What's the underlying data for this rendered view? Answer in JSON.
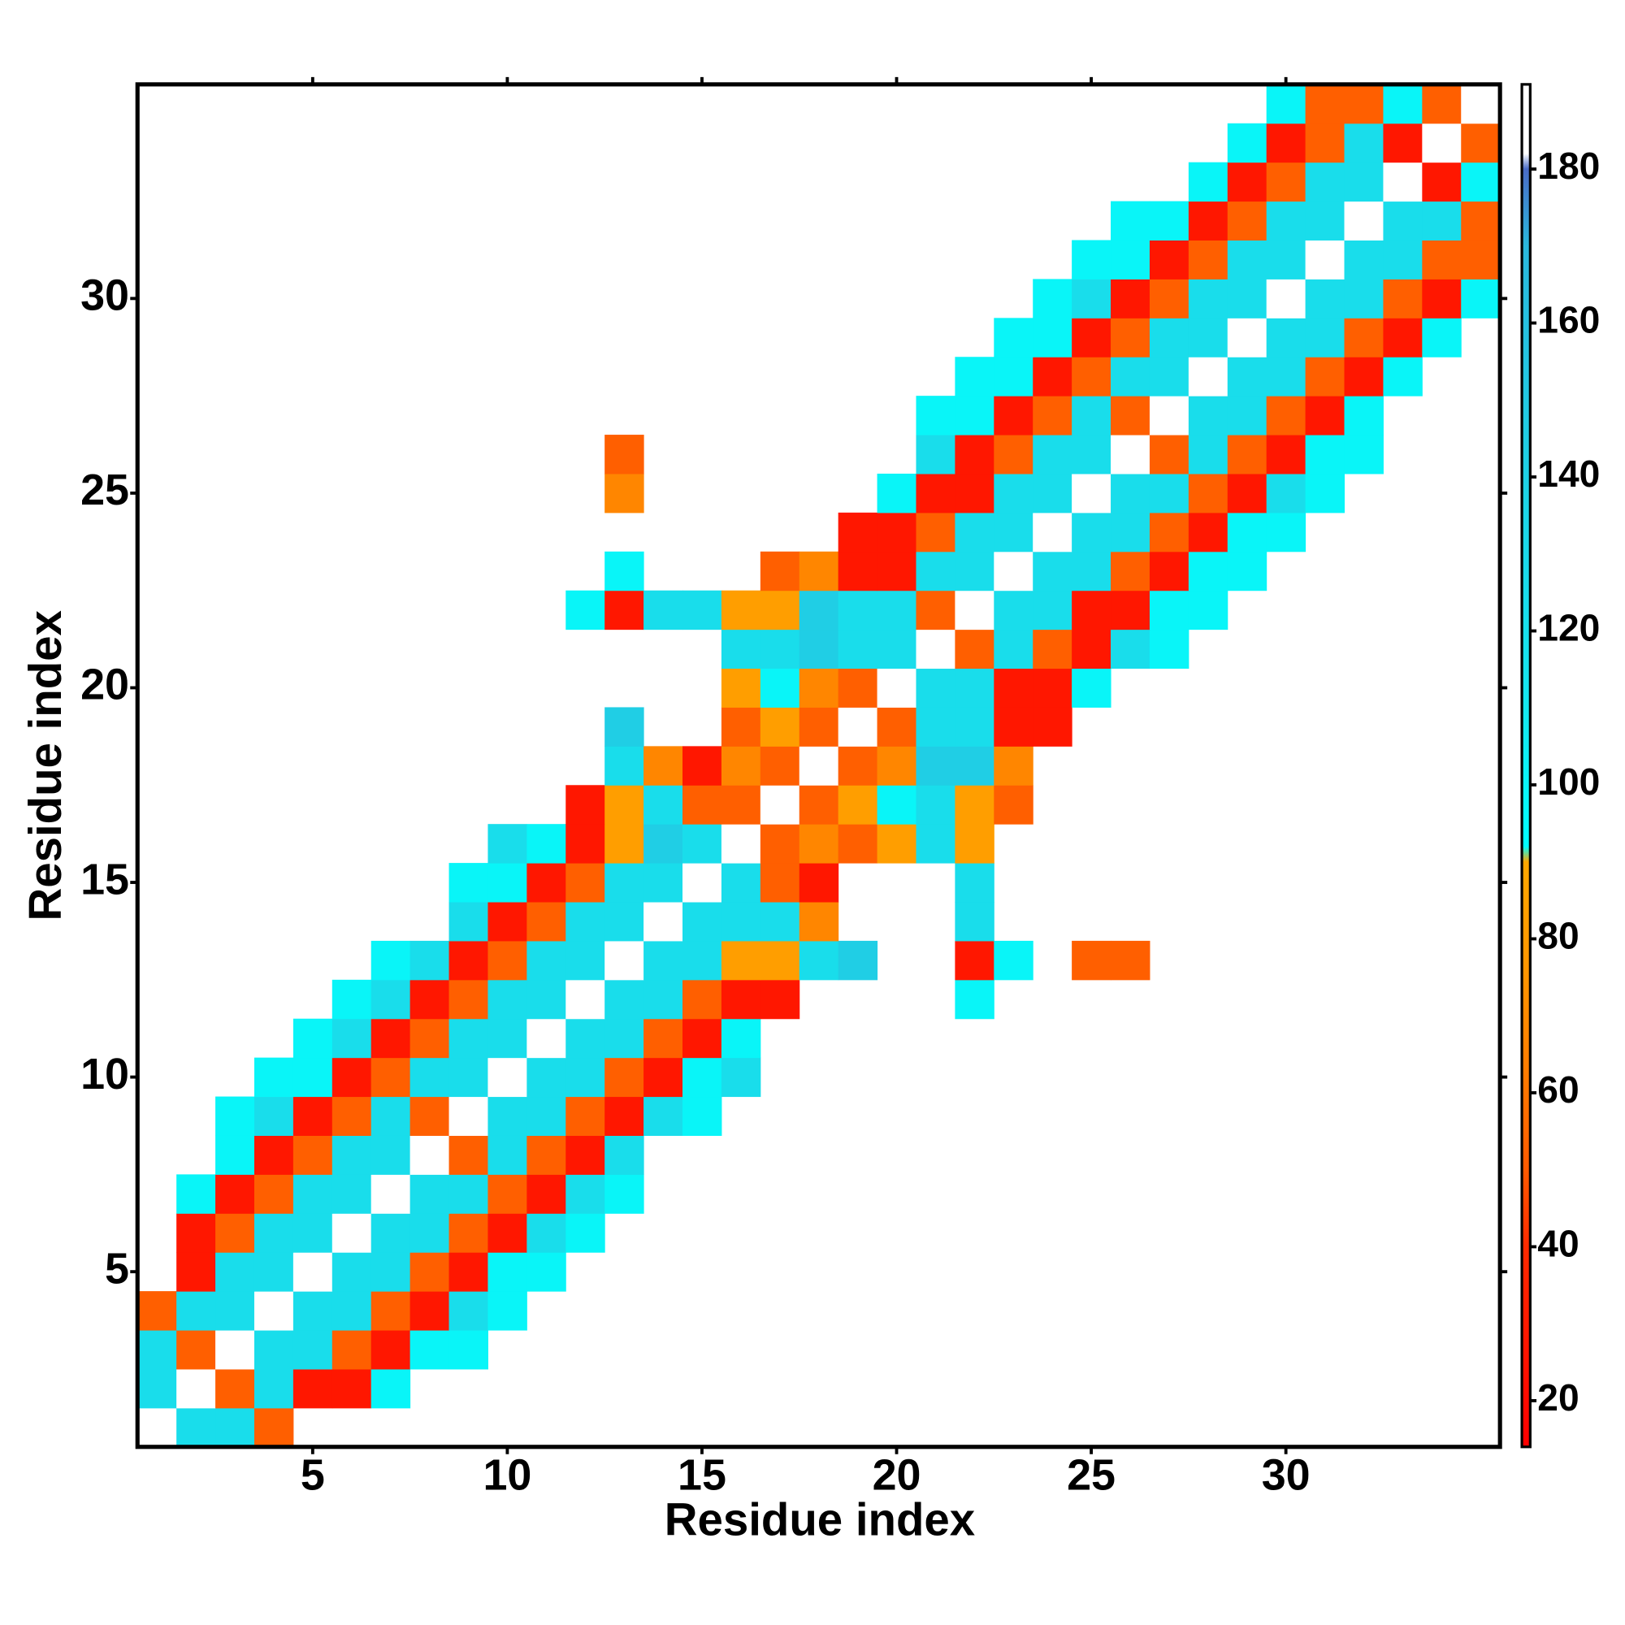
{
  "chart_data": {
    "type": "heatmap",
    "xlabel": "Residue index",
    "ylabel": "Residue index",
    "x": [
      1,
      2,
      3,
      4,
      5,
      6,
      7,
      8,
      9,
      10,
      11,
      12,
      13,
      14,
      15,
      16,
      17,
      18,
      19,
      20,
      21,
      22,
      23,
      24,
      25,
      26,
      27,
      28,
      29,
      30,
      31,
      32,
      33,
      34,
      35
    ],
    "y": [
      1,
      2,
      3,
      4,
      5,
      6,
      7,
      8,
      9,
      10,
      11,
      12,
      13,
      14,
      15,
      16,
      17,
      18,
      19,
      20,
      21,
      22,
      23,
      24,
      25,
      26,
      27,
      28,
      29,
      30,
      31,
      32,
      33,
      34,
      35
    ],
    "xlim": [
      0.5,
      35.5
    ],
    "ylim": [
      0.5,
      35.5
    ],
    "xticks": [
      5,
      10,
      15,
      20,
      25,
      30
    ],
    "yticks": [
      5,
      10,
      15,
      20,
      25,
      30
    ],
    "z": [
      [
        186,
        125,
        125,
        52,
        null,
        null,
        null,
        null,
        null,
        null,
        null,
        null,
        null,
        null,
        null,
        null,
        null,
        null,
        null,
        null,
        null,
        null,
        null,
        null,
        null,
        null,
        null,
        null,
        null,
        null,
        null,
        null,
        null,
        null,
        null
      ],
      [
        125,
        186,
        52,
        125,
        28,
        28,
        100,
        null,
        null,
        null,
        null,
        null,
        null,
        null,
        null,
        null,
        null,
        null,
        null,
        null,
        null,
        null,
        null,
        null,
        null,
        null,
        null,
        null,
        null,
        null,
        null,
        null,
        null,
        null,
        null
      ],
      [
        125,
        52,
        186,
        125,
        125,
        52,
        28,
        100,
        100,
        null,
        null,
        null,
        null,
        null,
        null,
        null,
        null,
        null,
        null,
        null,
        null,
        null,
        null,
        null,
        null,
        null,
        null,
        null,
        null,
        null,
        null,
        null,
        null,
        null,
        null
      ],
      [
        52,
        125,
        125,
        186,
        125,
        125,
        52,
        28,
        125,
        100,
        null,
        null,
        null,
        null,
        null,
        null,
        null,
        null,
        null,
        null,
        null,
        null,
        null,
        null,
        null,
        null,
        null,
        null,
        null,
        null,
        null,
        null,
        null,
        null,
        null
      ],
      [
        null,
        28,
        125,
        125,
        186,
        125,
        125,
        52,
        28,
        100,
        100,
        null,
        null,
        null,
        null,
        null,
        null,
        null,
        null,
        null,
        null,
        null,
        null,
        null,
        null,
        null,
        null,
        null,
        null,
        null,
        null,
        null,
        null,
        null,
        null
      ],
      [
        null,
        28,
        52,
        125,
        125,
        186,
        125,
        125,
        52,
        28,
        125,
        100,
        null,
        null,
        null,
        null,
        null,
        null,
        null,
        null,
        null,
        null,
        null,
        null,
        null,
        null,
        null,
        null,
        null,
        null,
        null,
        null,
        null,
        null,
        null
      ],
      [
        null,
        100,
        28,
        52,
        125,
        125,
        186,
        125,
        125,
        52,
        28,
        125,
        100,
        null,
        null,
        null,
        null,
        null,
        null,
        null,
        null,
        null,
        null,
        null,
        null,
        null,
        null,
        null,
        null,
        null,
        null,
        null,
        null,
        null,
        null
      ],
      [
        null,
        null,
        100,
        28,
        52,
        125,
        125,
        186,
        52,
        125,
        52,
        28,
        125,
        null,
        null,
        null,
        null,
        null,
        null,
        null,
        null,
        null,
        null,
        null,
        null,
        null,
        null,
        null,
        null,
        null,
        null,
        null,
        null,
        null,
        null
      ],
      [
        null,
        null,
        100,
        125,
        28,
        52,
        125,
        52,
        186,
        125,
        125,
        52,
        28,
        125,
        100,
        null,
        null,
        null,
        null,
        null,
        null,
        null,
        null,
        null,
        null,
        null,
        null,
        null,
        null,
        null,
        null,
        null,
        null,
        null,
        null
      ],
      [
        null,
        null,
        null,
        100,
        100,
        28,
        52,
        125,
        125,
        186,
        125,
        125,
        52,
        28,
        100,
        125,
        null,
        null,
        null,
        null,
        null,
        null,
        null,
        null,
        null,
        null,
        null,
        null,
        null,
        null,
        null,
        null,
        null,
        null,
        null
      ],
      [
        null,
        null,
        null,
        null,
        100,
        125,
        28,
        52,
        125,
        125,
        186,
        125,
        125,
        52,
        28,
        100,
        null,
        null,
        null,
        null,
        null,
        null,
        null,
        null,
        null,
        null,
        null,
        null,
        null,
        null,
        null,
        null,
        null,
        null,
        null
      ],
      [
        null,
        null,
        null,
        null,
        null,
        100,
        125,
        28,
        52,
        125,
        125,
        186,
        125,
        125,
        52,
        28,
        28,
        null,
        null,
        null,
        null,
        100,
        null,
        null,
        null,
        null,
        null,
        null,
        null,
        null,
        null,
        null,
        null,
        null,
        null
      ],
      [
        null,
        null,
        null,
        null,
        null,
        null,
        100,
        125,
        28,
        52,
        125,
        125,
        186,
        125,
        125,
        82,
        82,
        125,
        145,
        null,
        null,
        28,
        100,
        null,
        52,
        52,
        null,
        null,
        null,
        null,
        null,
        null,
        null,
        null,
        null
      ],
      [
        null,
        null,
        null,
        null,
        null,
        null,
        null,
        null,
        125,
        28,
        52,
        125,
        125,
        186,
        125,
        125,
        125,
        68,
        null,
        null,
        null,
        125,
        null,
        null,
        null,
        null,
        null,
        null,
        null,
        null,
        null,
        null,
        null,
        null,
        null
      ],
      [
        null,
        null,
        null,
        null,
        null,
        null,
        null,
        null,
        100,
        100,
        28,
        52,
        125,
        125,
        186,
        125,
        52,
        28,
        null,
        null,
        null,
        125,
        null,
        null,
        null,
        null,
        null,
        null,
        null,
        null,
        null,
        null,
        null,
        null,
        null
      ],
      [
        null,
        null,
        null,
        null,
        null,
        null,
        null,
        null,
        null,
        125,
        100,
        28,
        82,
        145,
        125,
        186,
        52,
        68,
        52,
        82,
        125,
        82,
        null,
        null,
        null,
        null,
        null,
        null,
        null,
        null,
        null,
        null,
        null,
        null,
        null
      ],
      [
        null,
        null,
        null,
        null,
        null,
        null,
        null,
        null,
        null,
        null,
        null,
        28,
        82,
        125,
        52,
        52,
        186,
        52,
        82,
        100,
        125,
        82,
        52,
        null,
        null,
        null,
        null,
        null,
        null,
        null,
        null,
        null,
        null,
        null,
        null
      ],
      [
        null,
        null,
        null,
        null,
        null,
        null,
        null,
        null,
        null,
        null,
        null,
        null,
        125,
        68,
        28,
        68,
        52,
        186,
        52,
        68,
        145,
        145,
        68,
        null,
        null,
        null,
        null,
        null,
        null,
        null,
        null,
        null,
        null,
        null,
        null
      ],
      [
        null,
        null,
        null,
        null,
        null,
        null,
        null,
        null,
        null,
        null,
        null,
        null,
        145,
        null,
        null,
        52,
        82,
        52,
        186,
        52,
        125,
        125,
        28,
        28,
        null,
        null,
        null,
        null,
        null,
        null,
        null,
        null,
        null,
        null,
        null
      ],
      [
        null,
        null,
        null,
        null,
        null,
        null,
        null,
        null,
        null,
        null,
        null,
        null,
        null,
        null,
        null,
        82,
        100,
        68,
        52,
        186,
        125,
        125,
        28,
        28,
        100,
        null,
        null,
        null,
        null,
        null,
        null,
        null,
        null,
        null,
        null
      ],
      [
        null,
        null,
        null,
        null,
        null,
        null,
        null,
        null,
        null,
        null,
        null,
        null,
        null,
        null,
        null,
        125,
        125,
        145,
        125,
        125,
        186,
        52,
        125,
        52,
        28,
        125,
        100,
        null,
        null,
        null,
        null,
        null,
        null,
        null,
        null
      ],
      [
        null,
        null,
        null,
        null,
        null,
        null,
        null,
        null,
        null,
        null,
        null,
        100,
        28,
        125,
        125,
        82,
        82,
        145,
        125,
        125,
        52,
        186,
        125,
        125,
        28,
        28,
        100,
        100,
        null,
        null,
        null,
        null,
        null,
        null,
        null
      ],
      [
        null,
        null,
        null,
        null,
        null,
        null,
        null,
        null,
        null,
        null,
        null,
        null,
        100,
        null,
        null,
        null,
        52,
        68,
        28,
        28,
        125,
        125,
        186,
        125,
        125,
        52,
        28,
        100,
        100,
        null,
        null,
        null,
        null,
        null,
        null
      ],
      [
        null,
        null,
        null,
        null,
        null,
        null,
        null,
        null,
        null,
        null,
        null,
        null,
        null,
        null,
        null,
        null,
        null,
        null,
        28,
        28,
        52,
        125,
        125,
        186,
        125,
        125,
        52,
        28,
        100,
        100,
        null,
        null,
        null,
        null,
        null
      ],
      [
        null,
        null,
        null,
        null,
        null,
        null,
        null,
        null,
        null,
        null,
        null,
        null,
        68,
        null,
        null,
        null,
        null,
        null,
        null,
        100,
        28,
        28,
        125,
        125,
        186,
        125,
        125,
        52,
        28,
        125,
        100,
        null,
        null,
        null,
        null
      ],
      [
        null,
        null,
        null,
        null,
        null,
        null,
        null,
        null,
        null,
        null,
        null,
        null,
        52,
        null,
        null,
        null,
        null,
        null,
        null,
        null,
        125,
        28,
        52,
        125,
        125,
        186,
        52,
        125,
        52,
        28,
        100,
        100,
        null,
        null,
        null
      ],
      [
        null,
        null,
        null,
        null,
        null,
        null,
        null,
        null,
        null,
        null,
        null,
        null,
        null,
        null,
        null,
        null,
        null,
        null,
        null,
        null,
        100,
        100,
        28,
        52,
        125,
        52,
        186,
        125,
        125,
        52,
        28,
        100,
        null,
        null,
        null
      ],
      [
        null,
        null,
        null,
        null,
        null,
        null,
        null,
        null,
        null,
        null,
        null,
        null,
        null,
        null,
        null,
        null,
        null,
        null,
        null,
        null,
        null,
        100,
        100,
        28,
        52,
        125,
        125,
        186,
        125,
        125,
        52,
        28,
        100,
        null,
        null
      ],
      [
        null,
        null,
        null,
        null,
        null,
        null,
        null,
        null,
        null,
        null,
        null,
        null,
        null,
        null,
        null,
        null,
        null,
        null,
        null,
        null,
        null,
        null,
        100,
        100,
        28,
        52,
        125,
        125,
        186,
        125,
        125,
        52,
        28,
        100,
        null
      ],
      [
        null,
        null,
        null,
        null,
        null,
        null,
        null,
        null,
        null,
        null,
        null,
        null,
        null,
        null,
        null,
        null,
        null,
        null,
        null,
        null,
        null,
        null,
        null,
        100,
        125,
        28,
        52,
        125,
        125,
        186,
        125,
        125,
        52,
        28,
        100
      ],
      [
        null,
        null,
        null,
        null,
        null,
        null,
        null,
        null,
        null,
        null,
        null,
        null,
        null,
        null,
        null,
        null,
        null,
        null,
        null,
        null,
        null,
        null,
        null,
        null,
        100,
        100,
        28,
        52,
        125,
        125,
        186,
        125,
        125,
        52,
        52
      ],
      [
        null,
        null,
        null,
        null,
        null,
        null,
        null,
        null,
        null,
        null,
        null,
        null,
        null,
        null,
        null,
        null,
        null,
        null,
        null,
        null,
        null,
        null,
        null,
        null,
        null,
        100,
        100,
        28,
        52,
        125,
        125,
        186,
        125,
        125,
        52
      ],
      [
        null,
        null,
        null,
        null,
        null,
        null,
        null,
        null,
        null,
        null,
        null,
        null,
        null,
        null,
        null,
        null,
        null,
        null,
        null,
        null,
        null,
        null,
        null,
        null,
        null,
        null,
        null,
        100,
        28,
        52,
        125,
        125,
        186,
        28,
        100
      ],
      [
        null,
        null,
        null,
        null,
        null,
        null,
        null,
        null,
        null,
        null,
        null,
        null,
        null,
        null,
        null,
        null,
        null,
        null,
        null,
        null,
        null,
        null,
        null,
        null,
        null,
        null,
        null,
        null,
        100,
        28,
        52,
        125,
        28,
        186,
        52
      ],
      [
        null,
        null,
        null,
        null,
        null,
        null,
        null,
        null,
        null,
        null,
        null,
        null,
        null,
        null,
        null,
        null,
        null,
        null,
        null,
        null,
        null,
        null,
        null,
        null,
        null,
        null,
        null,
        null,
        null,
        100,
        52,
        52,
        100,
        52,
        186
      ]
    ],
    "colorbar": {
      "lim": [
        14,
        191
      ],
      "ticks": [
        20,
        40,
        60,
        80,
        100,
        120,
        140,
        160,
        180
      ],
      "colorscale": [
        [
          14,
          "#ff0000"
        ],
        [
          40,
          "#ff2a00"
        ],
        [
          50,
          "#ff5a00"
        ],
        [
          62,
          "#ff7a00"
        ],
        [
          75,
          "#ff9500"
        ],
        [
          90,
          "#ffa800"
        ],
        [
          92,
          "#00ffff"
        ],
        [
          110,
          "#14e8f0"
        ],
        [
          140,
          "#1ed2e6"
        ],
        [
          170,
          "#2ab8dd"
        ],
        [
          180,
          "#4a6cc8"
        ],
        [
          182,
          "#ffffff"
        ],
        [
          191,
          "#ffffff"
        ]
      ]
    }
  }
}
